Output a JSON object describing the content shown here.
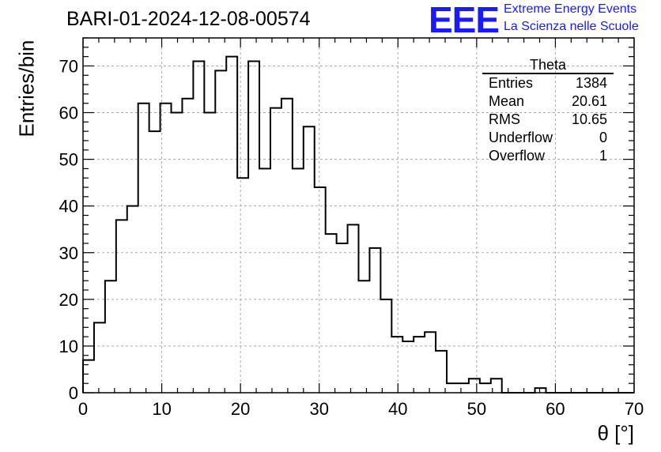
{
  "header": {
    "title": "BARI-01-2024-12-08-00574",
    "logo_text": "EEE",
    "brand_line1": "Extreme Energy Events",
    "brand_line2": "La Scienza nelle Scuole"
  },
  "stats": {
    "name": "Theta",
    "rows": [
      {
        "label": "Entries",
        "value": "1384"
      },
      {
        "label": "Mean",
        "value": "20.61"
      },
      {
        "label": "RMS",
        "value": "10.65"
      },
      {
        "label": "Underflow",
        "value": "0"
      },
      {
        "label": "Overflow",
        "value": "1"
      }
    ]
  },
  "chart_data": {
    "type": "histogram",
    "xlabel": "θ [°]",
    "ylabel": "Entries/bin",
    "xlim": [
      0,
      70
    ],
    "ylim": [
      0,
      76
    ],
    "xticks": [
      0,
      10,
      20,
      30,
      40,
      50,
      60,
      70
    ],
    "yticks": [
      0,
      10,
      20,
      30,
      40,
      50,
      60,
      70
    ],
    "grid": true,
    "bin_width": 1.4,
    "bin_edges_start": 0,
    "values": [
      7,
      15,
      24,
      37,
      40,
      62,
      56,
      62,
      60,
      63,
      71,
      60,
      69,
      72,
      46,
      71,
      48,
      61,
      63,
      48,
      57,
      44,
      34,
      32,
      36,
      24,
      31,
      20,
      12,
      11,
      12,
      13,
      9,
      2,
      2,
      3,
      2,
      3,
      0,
      0,
      0,
      1,
      0,
      0,
      0,
      0,
      0,
      0,
      0,
      0
    ]
  },
  "colors": {
    "brand": "#1a1aff",
    "line": "#000000",
    "grid": "#aaaaaa"
  }
}
